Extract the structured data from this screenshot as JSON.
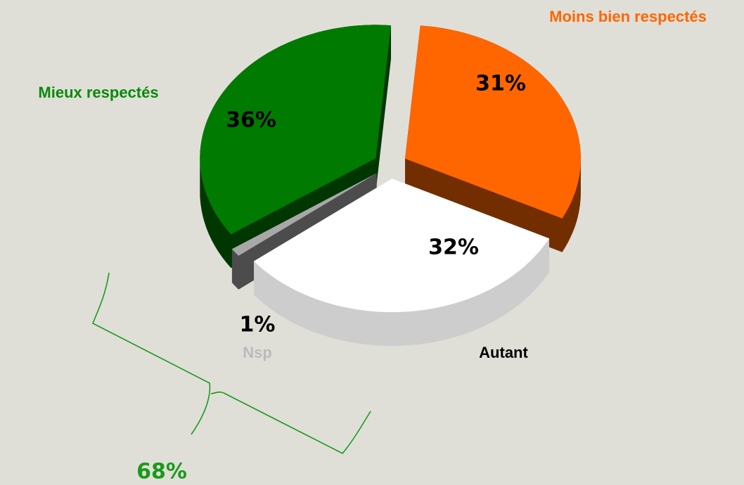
{
  "chart_data": {
    "type": "pie",
    "categories": [
      "Moins bien respectés",
      "Autant",
      "Nsp",
      "Mieux respectés"
    ],
    "values": [
      31,
      32,
      1,
      36
    ],
    "value_labels": [
      "31%",
      "32%",
      "1%",
      "36%"
    ],
    "colors": [
      "#ff6600",
      "#ffffff",
      "#a8a8a8",
      "#007a00"
    ],
    "annotation": "68%"
  }
}
